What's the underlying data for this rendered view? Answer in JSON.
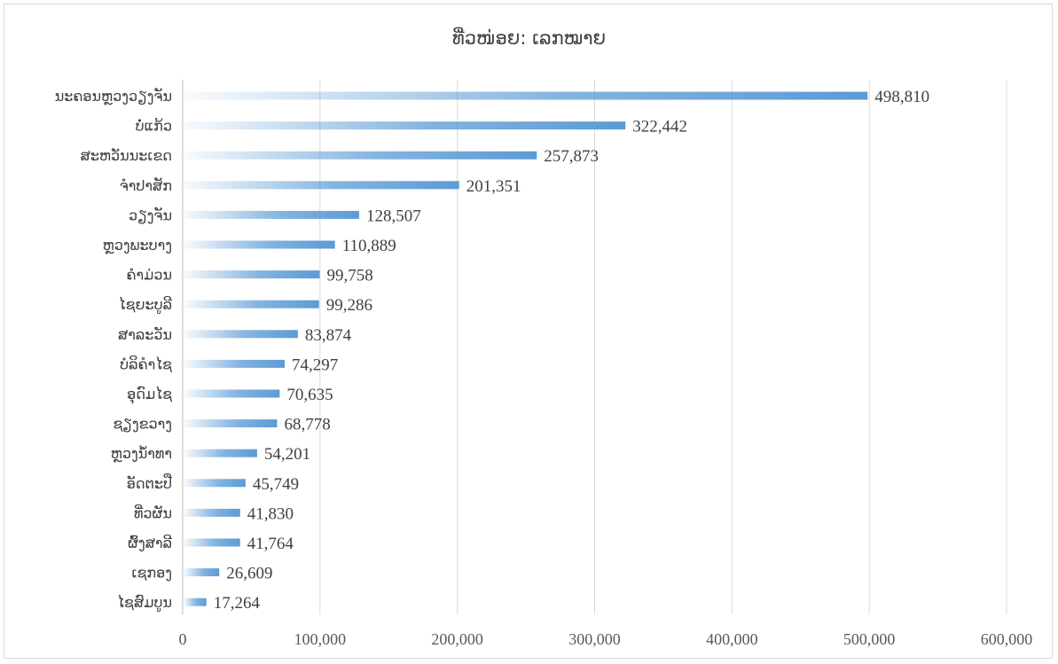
{
  "chart_data": {
    "type": "bar",
    "orientation": "horizontal",
    "title": "ທີ່ວໜ່ອຍ: ເລກໝາຍ",
    "categories": [
      "ນະຄອນຫຼວງວຽງຈັນ",
      "ບໍ່ແກ້ວ",
      "ສະຫວັນນະເຂດ",
      "ຈຳປາສັກ",
      "ວຽງຈັນ",
      "ຫຼວງພະບາງ",
      "ຄຳມ່ວນ",
      "ໄຊຍະບູລີ",
      "ສາລະວັນ",
      "ບໍລິຄຳໄຊ",
      "ອຸດົມໄຊ",
      "ຊຽງຂວາງ",
      "ຫຼວງນ້ຳທາ",
      "ອັດຕະປື",
      "ທີ່ວຜັນ",
      "ຜົ້ງສາລີ",
      "ເຊກອງ",
      "ໄຊສົມບູນ"
    ],
    "values": [
      498810,
      322442,
      257873,
      201351,
      128507,
      110889,
      99758,
      99286,
      83874,
      74297,
      70635,
      68778,
      54201,
      45749,
      41830,
      41764,
      26609,
      17264
    ],
    "value_labels": [
      "498,810",
      "322,442",
      "257,873",
      "201,351",
      "128,507",
      "110,889",
      "99,758",
      "99,286",
      "83,874",
      "74,297",
      "70,635",
      "68,778",
      "54,201",
      "45,749",
      "41,830",
      "41,764",
      "26,609",
      "17,264"
    ],
    "xlim": [
      0,
      600000
    ],
    "x_ticks": [
      "0",
      "100,000",
      "200,000",
      "300,000",
      "400,000",
      "500,000",
      "600,000"
    ],
    "grid": "vertical",
    "bar_color": "#5b9bd5",
    "legend": "none"
  }
}
